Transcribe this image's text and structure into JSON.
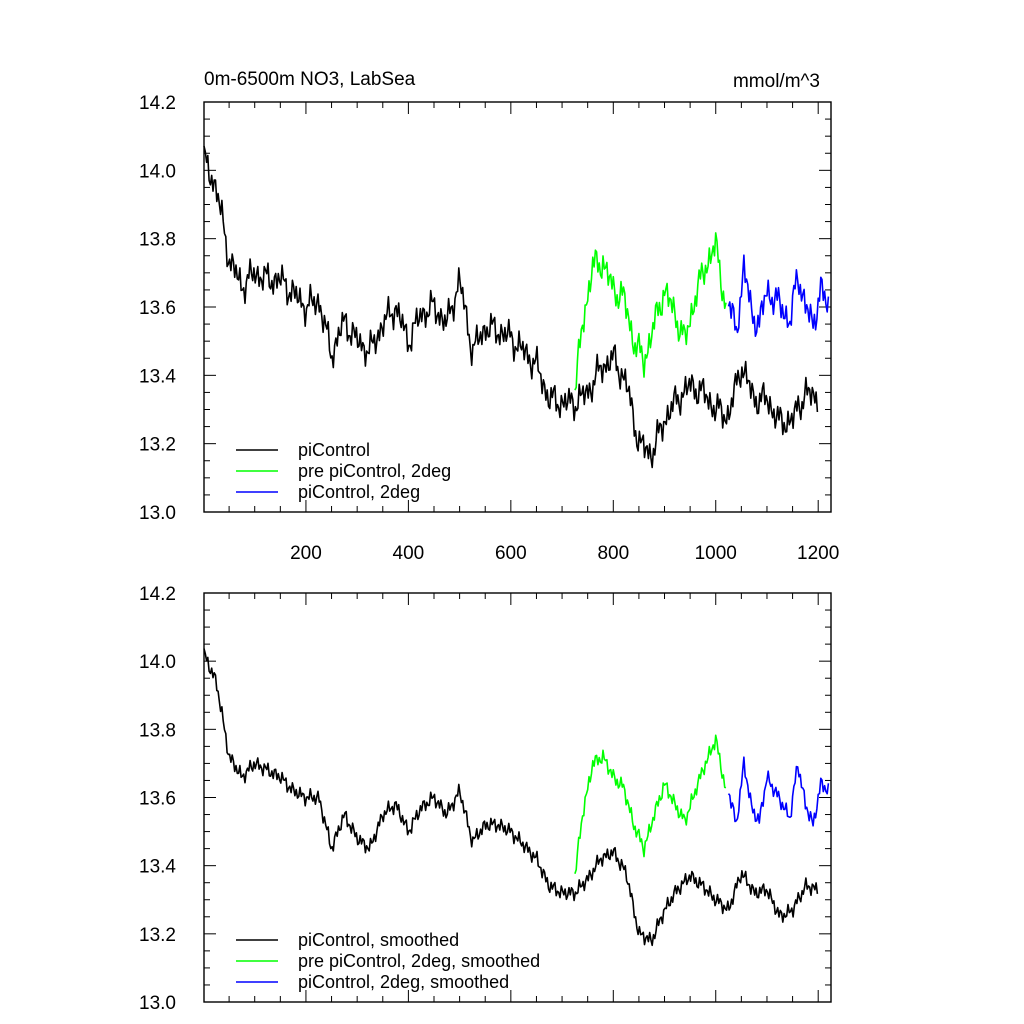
{
  "figure": {
    "title_left": "0m-6500m NO3, LabSea",
    "title_right": "mmol/m^3"
  },
  "chart_data": [
    {
      "type": "line",
      "panel": "top",
      "title": "0m-6500m NO3, LabSea",
      "units": "mmol/m^3",
      "xlim": [
        1,
        1225
      ],
      "ylim": [
        13.0,
        14.2
      ],
      "x_ticks": [
        200,
        400,
        600,
        800,
        1000,
        1200
      ],
      "x_tick_labels": [
        "200",
        "400",
        "600",
        "800",
        "1000",
        "1200"
      ],
      "y_ticks": [
        13.0,
        13.2,
        13.4,
        13.6,
        13.8,
        14.0,
        14.2
      ],
      "y_tick_labels": [
        "13.0",
        "13.2",
        "13.4",
        "13.6",
        "13.8",
        "14.0",
        "14.2"
      ],
      "legend_position": "bottom-left",
      "series": [
        {
          "name": "piControl",
          "color": "#000000",
          "x": [
            1,
            25,
            50,
            75,
            100,
            125,
            150,
            175,
            200,
            225,
            250,
            275,
            300,
            325,
            350,
            375,
            400,
            425,
            450,
            475,
            500,
            525,
            550,
            575,
            600,
            625,
            650,
            675,
            700,
            725,
            750,
            775,
            800,
            825,
            850,
            875,
            900,
            925,
            950,
            975,
            1000,
            1025,
            1050,
            1075,
            1100,
            1125,
            1150,
            1175,
            1200
          ],
          "y": [
            14.03,
            13.95,
            13.74,
            13.66,
            13.7,
            13.68,
            13.68,
            13.64,
            13.6,
            13.62,
            13.46,
            13.56,
            13.5,
            13.47,
            13.55,
            13.6,
            13.5,
            13.58,
            13.6,
            13.55,
            13.68,
            13.47,
            13.54,
            13.53,
            13.51,
            13.47,
            13.43,
            13.33,
            13.32,
            13.32,
            13.35,
            13.42,
            13.45,
            13.38,
            13.2,
            13.17,
            13.27,
            13.33,
            13.37,
            13.35,
            13.3,
            13.28,
            13.43,
            13.33,
            13.33,
            13.26,
            13.27,
            13.35,
            13.33
          ]
        },
        {
          "name": "pre piControl, 2deg",
          "color": "#00ff00",
          "x": [
            725,
            740,
            760,
            780,
            800,
            820,
            840,
            860,
            880,
            900,
            920,
            940,
            960,
            980,
            1000,
            1020
          ],
          "y": [
            13.35,
            13.55,
            13.72,
            13.73,
            13.65,
            13.63,
            13.5,
            13.44,
            13.55,
            13.65,
            13.58,
            13.5,
            13.63,
            13.72,
            13.78,
            13.6
          ]
        },
        {
          "name": "piControl, 2deg",
          "color": "#0000ff",
          "x": [
            1025,
            1040,
            1055,
            1070,
            1085,
            1100,
            1115,
            1130,
            1145,
            1160,
            1175,
            1190,
            1205,
            1220
          ],
          "y": [
            13.62,
            13.52,
            13.72,
            13.58,
            13.55,
            13.65,
            13.62,
            13.6,
            13.55,
            13.7,
            13.6,
            13.55,
            13.65,
            13.6
          ]
        }
      ]
    },
    {
      "type": "line",
      "panel": "bottom",
      "xlim": [
        1,
        1225
      ],
      "ylim": [
        13.0,
        14.2
      ],
      "y_ticks": [
        13.0,
        13.2,
        13.4,
        13.6,
        13.8,
        14.0,
        14.2
      ],
      "y_tick_labels": [
        "13.0",
        "13.2",
        "13.4",
        "13.6",
        "13.8",
        "14.0",
        "14.2"
      ],
      "legend_position": "bottom-left",
      "series": [
        {
          "name": "piControl, smoothed",
          "color": "#000000",
          "x": [
            1,
            25,
            50,
            75,
            100,
            125,
            150,
            175,
            200,
            225,
            250,
            275,
            300,
            325,
            350,
            375,
            400,
            425,
            450,
            475,
            500,
            525,
            550,
            575,
            600,
            625,
            650,
            675,
            700,
            725,
            750,
            775,
            800,
            825,
            850,
            875,
            900,
            925,
            950,
            975,
            1000,
            1025,
            1050,
            1075,
            1100,
            1125,
            1150,
            1175,
            1200
          ],
          "y": [
            14.02,
            13.94,
            13.72,
            13.66,
            13.7,
            13.68,
            13.66,
            13.62,
            13.6,
            13.6,
            13.45,
            13.55,
            13.48,
            13.45,
            13.55,
            13.58,
            13.5,
            13.57,
            13.6,
            13.55,
            13.62,
            13.47,
            13.52,
            13.52,
            13.5,
            13.46,
            13.42,
            13.34,
            13.32,
            13.32,
            13.36,
            13.42,
            13.44,
            13.38,
            13.2,
            13.18,
            13.27,
            13.33,
            13.37,
            13.34,
            13.3,
            13.27,
            13.38,
            13.32,
            13.33,
            13.25,
            13.27,
            13.34,
            13.33
          ]
        },
        {
          "name": "pre piControl, 2deg, smoothed",
          "color": "#00ff00",
          "x": [
            725,
            740,
            760,
            780,
            800,
            820,
            840,
            860,
            880,
            900,
            920,
            940,
            960,
            980,
            1000,
            1020
          ],
          "y": [
            13.37,
            13.55,
            13.7,
            13.72,
            13.66,
            13.63,
            13.52,
            13.45,
            13.55,
            13.64,
            13.58,
            13.53,
            13.62,
            13.7,
            13.77,
            13.62
          ]
        },
        {
          "name": "piControl, 2deg, smoothed",
          "color": "#0000ff",
          "x": [
            1025,
            1040,
            1055,
            1070,
            1085,
            1100,
            1115,
            1130,
            1145,
            1160,
            1175,
            1190,
            1205,
            1220
          ],
          "y": [
            13.62,
            13.52,
            13.7,
            13.57,
            13.53,
            13.66,
            13.62,
            13.58,
            13.54,
            13.7,
            13.58,
            13.52,
            13.64,
            13.62
          ]
        }
      ]
    }
  ]
}
